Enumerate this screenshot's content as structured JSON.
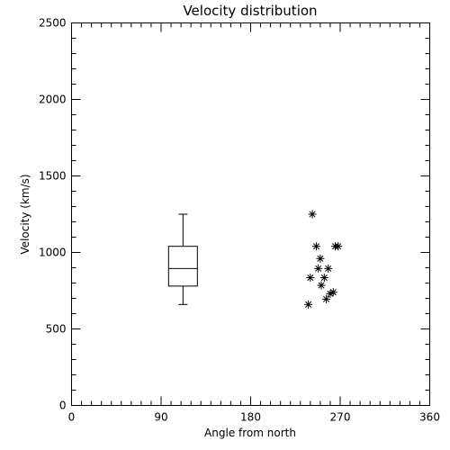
{
  "chart_data": {
    "type": "scatter",
    "title": "Velocity distribution",
    "xlabel": "Angle from north",
    "ylabel": "Velocity (km/s)",
    "xlim": [
      0,
      360
    ],
    "ylim": [
      0,
      2500
    ],
    "xticks": [
      "0",
      "90",
      "180",
      "270",
      "360"
    ],
    "yticks": [
      "0",
      "500",
      "1000",
      "1500",
      "2000",
      "2500"
    ],
    "grid": false,
    "boxplot": {
      "x": 112,
      "min": 660,
      "q1": 780,
      "median": 895,
      "q3": 1040,
      "max": 1250
    },
    "points": [
      {
        "x": 242,
        "y": 1250
      },
      {
        "x": 246,
        "y": 1040
      },
      {
        "x": 265,
        "y": 1040
      },
      {
        "x": 268,
        "y": 1040
      },
      {
        "x": 250,
        "y": 960
      },
      {
        "x": 248,
        "y": 895
      },
      {
        "x": 258,
        "y": 895
      },
      {
        "x": 240,
        "y": 835
      },
      {
        "x": 254,
        "y": 835
      },
      {
        "x": 251,
        "y": 785
      },
      {
        "x": 263,
        "y": 740
      },
      {
        "x": 260,
        "y": 730
      },
      {
        "x": 256,
        "y": 695
      },
      {
        "x": 238,
        "y": 660
      }
    ]
  }
}
